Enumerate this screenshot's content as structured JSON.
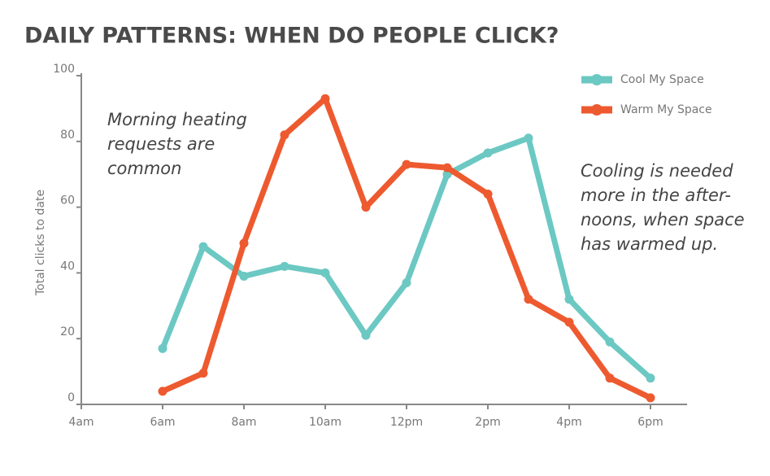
{
  "chart_data": {
    "type": "line",
    "title": "DAILY PATTERNS: WHEN DO PEOPLE CLICK?",
    "y_label": "Total clicks to date",
    "x": [
      6,
      7,
      8,
      9,
      10,
      11,
      12,
      13,
      14,
      15,
      16,
      17,
      18
    ],
    "xlim": [
      4,
      18.9
    ],
    "xticks": [
      {
        "value": 4,
        "label": "4am"
      },
      {
        "value": 6,
        "label": "6am"
      },
      {
        "value": 8,
        "label": "8am"
      },
      {
        "value": 10,
        "label": "10am"
      },
      {
        "value": 12,
        "label": "12pm"
      },
      {
        "value": 14,
        "label": "2pm"
      },
      {
        "value": 16,
        "label": "4pm"
      },
      {
        "value": 18,
        "label": "6pm"
      }
    ],
    "ylim": [
      0,
      100
    ],
    "yticks": [
      0,
      20,
      40,
      60,
      80,
      100
    ],
    "legend": "top right",
    "series": [
      {
        "name": "Cool My Space",
        "color": "#6cc8c3",
        "values": [
          17,
          48,
          39,
          42,
          40,
          21,
          37,
          70,
          76.5,
          81,
          32,
          19,
          8
        ]
      },
      {
        "name": "Warm My Space",
        "color": "#ee5a2f",
        "values": [
          4,
          9.5,
          49,
          82,
          93,
          60,
          73,
          72,
          64,
          32,
          25,
          8,
          2
        ]
      }
    ],
    "annotations": [
      {
        "lines": [
          "Morning heating",
          "requests are",
          "common"
        ]
      },
      {
        "lines": [
          "Cooling is needed",
          "more in the after-",
          "noons, when space",
          "has warmed up."
        ]
      }
    ]
  }
}
